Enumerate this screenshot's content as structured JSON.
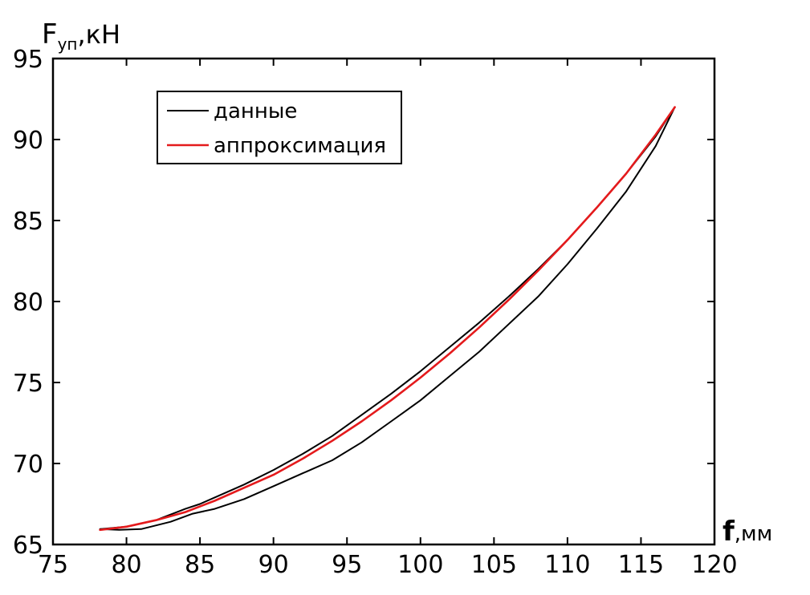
{
  "chart_data": {
    "type": "line",
    "xlabel": "f",
    "xlabel_unit": ",мм",
    "ylabel": "F",
    "ylabel_sub": "уп",
    "ylabel_unit": ",кН",
    "xlim": [
      75,
      120
    ],
    "ylim": [
      65,
      95
    ],
    "xticks": [
      "75",
      "80",
      "85",
      "90",
      "95",
      "100",
      "105",
      "110",
      "115",
      "120"
    ],
    "yticks": [
      "65",
      "70",
      "75",
      "80",
      "85",
      "90",
      "95"
    ],
    "grid": false,
    "legend_position": "top-left",
    "series": [
      {
        "name": "данные",
        "color": "#000000",
        "x": [
          78.2,
          80,
          82,
          84,
          85,
          86,
          88,
          90,
          92,
          94,
          96,
          98,
          100,
          102,
          104,
          106,
          108,
          110,
          112,
          114,
          116,
          117.3,
          116,
          114,
          112,
          110,
          108,
          106,
          104,
          102,
          100,
          98,
          96,
          94,
          92,
          90,
          88,
          86,
          84.5,
          83,
          81,
          79.5,
          78.2
        ],
        "y": [
          65.95,
          66.1,
          66.5,
          67.2,
          67.5,
          67.9,
          68.7,
          69.6,
          70.6,
          71.7,
          73.0,
          74.3,
          75.7,
          77.2,
          78.7,
          80.3,
          82.0,
          83.8,
          85.8,
          87.9,
          90.2,
          92.0,
          89.6,
          86.8,
          84.5,
          82.3,
          80.3,
          78.6,
          76.9,
          75.4,
          73.9,
          72.6,
          71.3,
          70.2,
          69.4,
          68.6,
          67.8,
          67.2,
          66.9,
          66.4,
          65.95,
          65.9,
          65.95
        ]
      },
      {
        "name": "аппроксимация",
        "color": "#e41a1c",
        "x": [
          78.2,
          80,
          82,
          84,
          86,
          88,
          90,
          92,
          94,
          96,
          98,
          100,
          102,
          104,
          106,
          108,
          110,
          112,
          114,
          116,
          117.3
        ],
        "y": [
          65.9,
          66.1,
          66.5,
          67.0,
          67.7,
          68.5,
          69.3,
          70.3,
          71.4,
          72.6,
          73.9,
          75.3,
          76.8,
          78.4,
          80.1,
          81.9,
          83.8,
          85.8,
          87.9,
          90.3,
          92.0
        ]
      }
    ]
  }
}
